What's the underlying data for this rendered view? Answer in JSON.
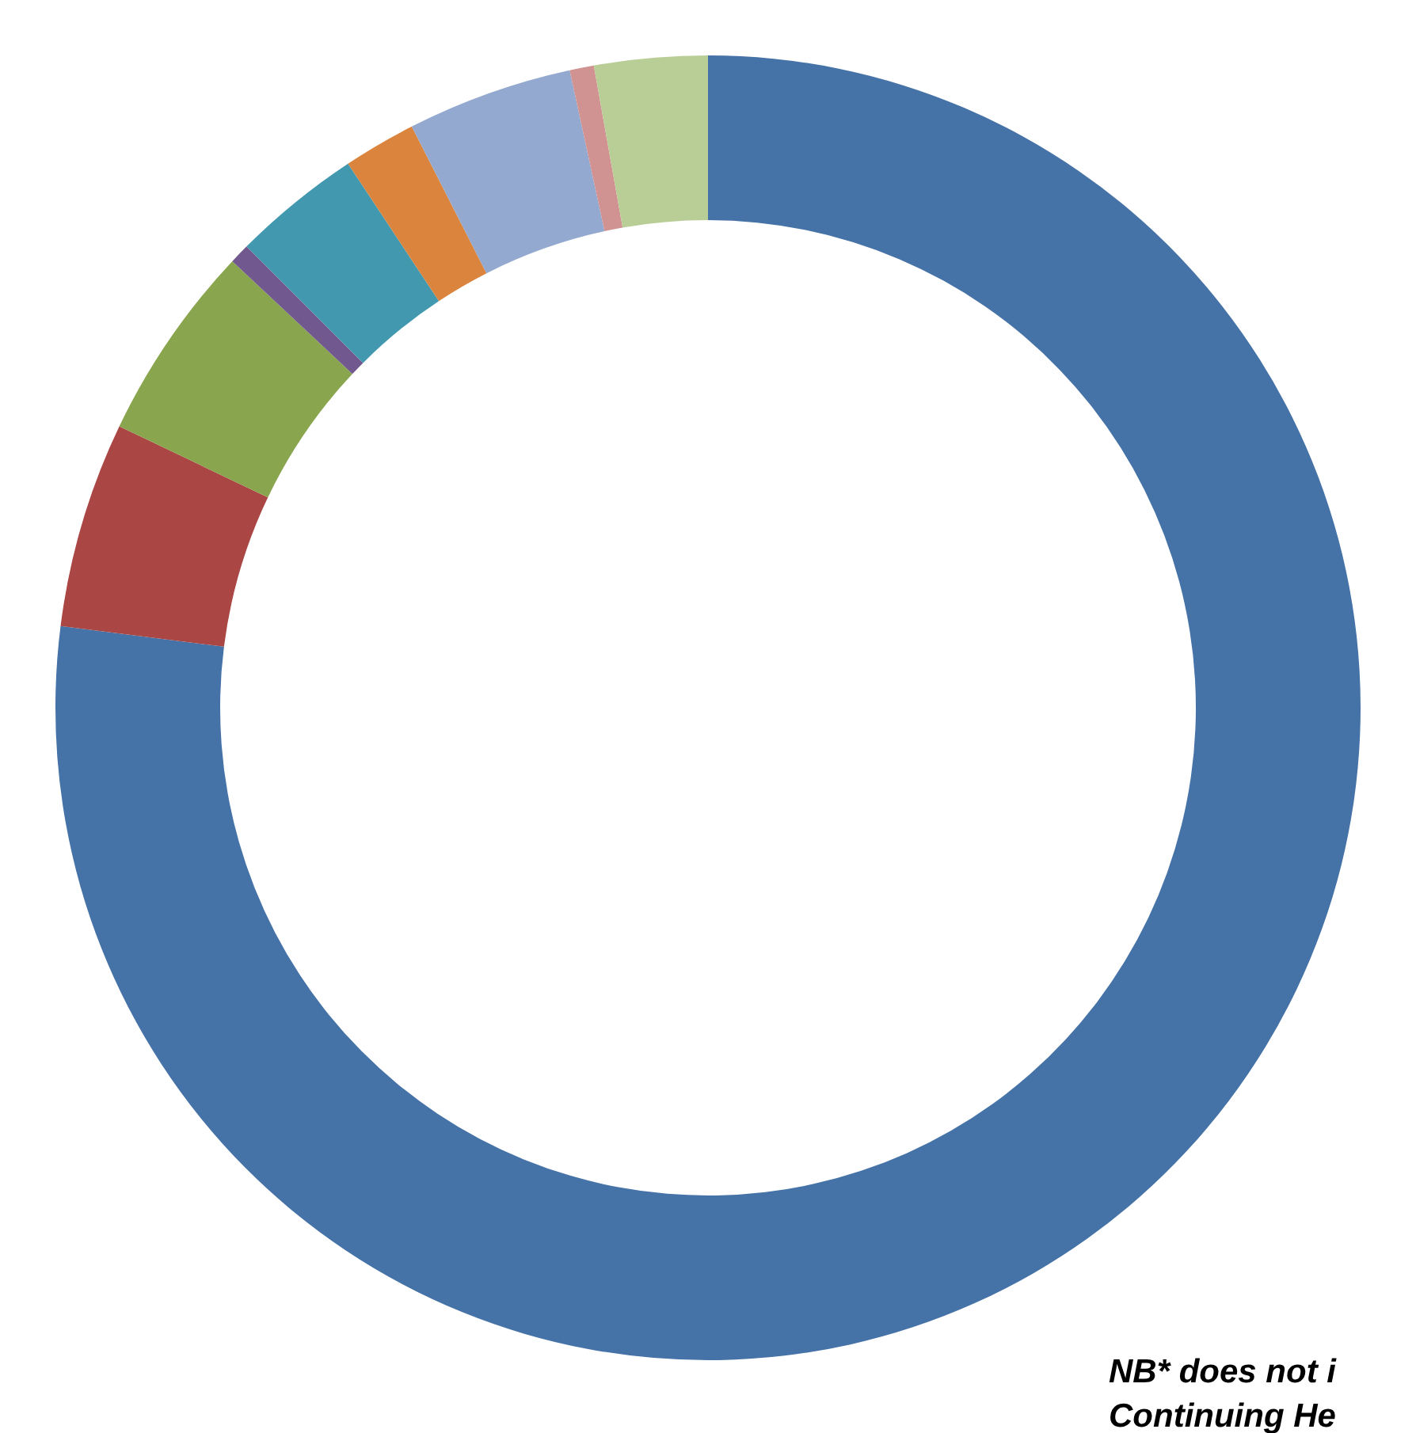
{
  "chart_data": {
    "type": "donut",
    "categories": [
      null,
      null,
      null,
      null,
      null,
      null,
      null,
      null,
      null
    ],
    "values": [
      77,
      5.1,
      4.9,
      0.5,
      3.2,
      1.8,
      4.1,
      0.6,
      2.8
    ],
    "colors": [
      "#4572a7",
      "#aa4643",
      "#89a54e",
      "#71588f",
      "#4198af",
      "#db843d",
      "#93a9cf",
      "#d19392",
      "#b9cd96"
    ],
    "annotations": [
      "NB* does not i",
      "Continuing He"
    ]
  }
}
